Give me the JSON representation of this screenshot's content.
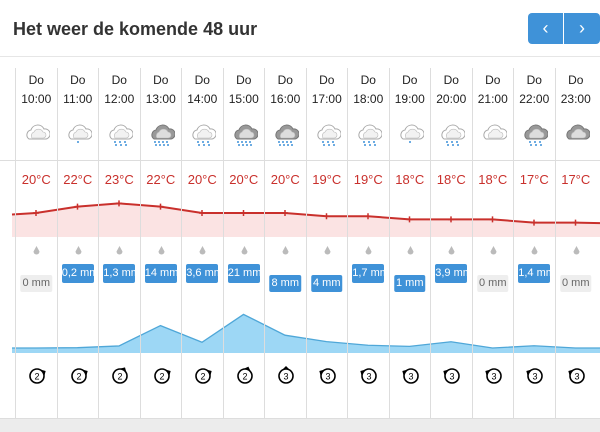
{
  "header": {
    "title": "Het weer de komende 48 uur",
    "prev_label": "‹",
    "next_label": "›"
  },
  "colors": {
    "accent": "#3f92d8",
    "temp": "#c9302c",
    "temp_fill": "#fbe3e3",
    "precip_fill": "#9dd7f5"
  },
  "hours": [
    {
      "day": "Do",
      "time": "10:00",
      "icon": "cloud-light",
      "temp": "20°C",
      "t": 20,
      "mm": "0 mm",
      "v": 0,
      "wind": "2",
      "dir": 60
    },
    {
      "day": "Do",
      "time": "11:00",
      "icon": "cloud-light-drizzle",
      "temp": "22°C",
      "t": 22,
      "mm": "0,2 mm",
      "v": 0.2,
      "wind": "2",
      "dir": 60
    },
    {
      "day": "Do",
      "time": "12:00",
      "icon": "cloud-light-rain",
      "temp": "23°C",
      "t": 23,
      "mm": "1,3 mm",
      "v": 1.3,
      "wind": "2",
      "dir": 30
    },
    {
      "day": "Do",
      "time": "13:00",
      "icon": "cloud-dark-heavy-rain",
      "temp": "22°C",
      "t": 22,
      "mm": "14 mm",
      "v": 14,
      "wind": "2",
      "dir": 60
    },
    {
      "day": "Do",
      "time": "14:00",
      "icon": "cloud-light-rain",
      "temp": "20°C",
      "t": 20,
      "mm": "3,6 mm",
      "v": 3.6,
      "wind": "2",
      "dir": 60
    },
    {
      "day": "Do",
      "time": "15:00",
      "icon": "cloud-dark-heavy-rain",
      "temp": "20°C",
      "t": 20,
      "mm": "21 mm",
      "v": 21,
      "wind": "2",
      "dir": 20
    },
    {
      "day": "Do",
      "time": "16:00",
      "icon": "cloud-dark-heavy-rain",
      "temp": "20°C",
      "t": 20,
      "mm": "8 mm",
      "v": 8,
      "wind": "3",
      "dir": 0
    },
    {
      "day": "Do",
      "time": "17:00",
      "icon": "cloud-light-rain",
      "temp": "19°C",
      "t": 19,
      "mm": "4 mm",
      "v": 4,
      "wind": "3",
      "dir": -60
    },
    {
      "day": "Do",
      "time": "18:00",
      "icon": "cloud-light-rain",
      "temp": "19°C",
      "t": 19,
      "mm": "1,7 mm",
      "v": 1.7,
      "wind": "3",
      "dir": -60
    },
    {
      "day": "Do",
      "time": "19:00",
      "icon": "cloud-light-drizzle",
      "temp": "18°C",
      "t": 18,
      "mm": "1 mm",
      "v": 1,
      "wind": "3",
      "dir": -60
    },
    {
      "day": "Do",
      "time": "20:00",
      "icon": "cloud-light-rain",
      "temp": "18°C",
      "t": 18,
      "mm": "3,9 mm",
      "v": 3.9,
      "wind": "3",
      "dir": -60
    },
    {
      "day": "Do",
      "time": "21:00",
      "icon": "cloud-light",
      "temp": "18°C",
      "t": 18,
      "mm": "0 mm",
      "v": 0,
      "wind": "3",
      "dir": -60
    },
    {
      "day": "Do",
      "time": "22:00",
      "icon": "cloud-dark-rain",
      "temp": "17°C",
      "t": 17,
      "mm": "1,4 mm",
      "v": 1.4,
      "wind": "3",
      "dir": -60
    },
    {
      "day": "Do",
      "time": "23:00",
      "icon": "cloud-dark",
      "temp": "17°C",
      "t": 17,
      "mm": "0 mm",
      "v": 0,
      "wind": "3",
      "dir": -60
    }
  ]
}
